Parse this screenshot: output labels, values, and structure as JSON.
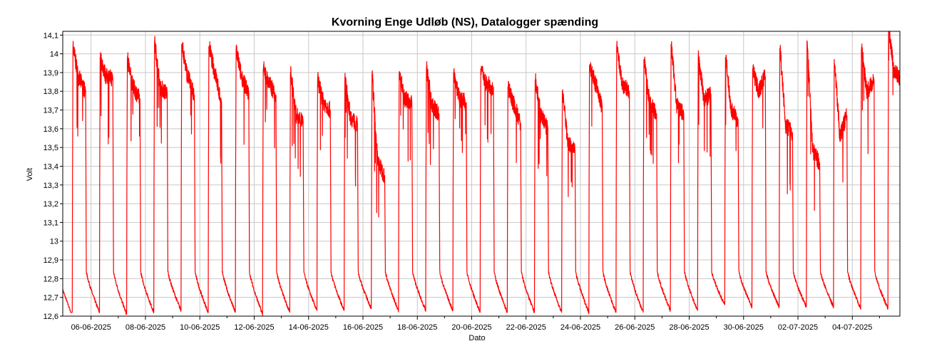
{
  "chart_data": {
    "type": "line",
    "title": "Kvorning Enge Udløb (NS), Datalogger spænding",
    "xlabel": "Dato",
    "ylabel": "Volt",
    "ylim": [
      12.6,
      14.12
    ],
    "xlim": [
      "2025-06-04T23:00",
      "2025-07-05T18:00"
    ],
    "yticks": [
      "12,6",
      "12,7",
      "12,8",
      "12,9",
      "13",
      "13,1",
      "13,2",
      "13,3",
      "13,4",
      "13,5",
      "13,6",
      "13,7",
      "13,8",
      "13,9",
      "14",
      "14,1"
    ],
    "xticks": [
      "06-06-2025",
      "08-06-2025",
      "10-06-2025",
      "12-06-2025",
      "14-06-2025",
      "16-06-2025",
      "18-06-2025",
      "20-06-2025",
      "22-06-2025",
      "24-06-2025",
      "26-06-2025",
      "28-06-2025",
      "30-06-2025",
      "02-07-2025",
      "04-07-2025"
    ],
    "grid": true,
    "series_color": "#ff0000",
    "series": [
      {
        "days": [
          {
            "date": "2025-06-05",
            "min": 12.62,
            "peak": 14.03,
            "plateau": 13.87,
            "end": 13.8
          },
          {
            "date": "2025-06-06",
            "min": 12.62,
            "peak": 13.98,
            "plateau": 13.88,
            "end": 13.87
          },
          {
            "date": "2025-06-07",
            "min": 12.61,
            "peak": 13.97,
            "plateau": 13.82,
            "end": 13.76
          },
          {
            "date": "2025-06-08",
            "min": 12.62,
            "peak": 14.06,
            "plateau": 13.82,
            "end": 13.79
          },
          {
            "date": "2025-06-09",
            "min": 12.63,
            "peak": 14.05,
            "plateau": 13.88,
            "end": 13.78
          },
          {
            "date": "2025-06-10",
            "min": 12.62,
            "peak": 14.04,
            "plateau": 13.9,
            "end": 13.74
          },
          {
            "date": "2025-06-11",
            "min": 12.62,
            "peak": 14.02,
            "plateau": 13.87,
            "end": 13.79
          },
          {
            "date": "2025-06-12",
            "min": 12.61,
            "peak": 13.92,
            "plateau": 13.84,
            "end": 13.78
          },
          {
            "date": "2025-06-13",
            "min": 12.62,
            "peak": 13.9,
            "plateau": 13.67,
            "end": 13.64
          },
          {
            "date": "2025-06-14",
            "min": 12.63,
            "peak": 13.86,
            "plateau": 13.74,
            "end": 13.7
          },
          {
            "date": "2025-06-15",
            "min": 12.63,
            "peak": 13.86,
            "plateau": 13.66,
            "end": 13.62
          },
          {
            "date": "2025-06-16",
            "min": 12.64,
            "peak": 13.88,
            "plateau": 13.42,
            "end": 13.35
          },
          {
            "date": "2025-06-17",
            "min": 12.63,
            "peak": 13.9,
            "plateau": 13.76,
            "end": 13.74
          },
          {
            "date": "2025-06-18",
            "min": 12.63,
            "peak": 13.92,
            "plateau": 13.72,
            "end": 13.68
          },
          {
            "date": "2025-06-19",
            "min": 12.63,
            "peak": 13.9,
            "plateau": 13.76,
            "end": 13.74
          },
          {
            "date": "2025-06-20",
            "min": 12.62,
            "peak": 13.92,
            "plateau": 13.84,
            "end": 13.82
          },
          {
            "date": "2025-06-21",
            "min": 12.62,
            "peak": 13.82,
            "plateau": 13.73,
            "end": 13.63
          },
          {
            "date": "2025-06-22",
            "min": 12.62,
            "peak": 13.86,
            "plateau": 13.67,
            "end": 13.6
          },
          {
            "date": "2025-06-23",
            "min": 12.62,
            "peak": 13.8,
            "plateau": 13.52,
            "end": 13.48
          },
          {
            "date": "2025-06-24",
            "min": 12.62,
            "peak": 13.94,
            "plateau": 13.84,
            "end": 13.72
          },
          {
            "date": "2025-06-25",
            "min": 12.62,
            "peak": 14.03,
            "plateau": 13.83,
            "end": 13.8
          },
          {
            "date": "2025-06-26",
            "min": 12.62,
            "peak": 13.97,
            "plateau": 13.74,
            "end": 13.68
          },
          {
            "date": "2025-06-27",
            "min": 12.63,
            "peak": 14.05,
            "plateau": 13.72,
            "end": 13.68
          },
          {
            "date": "2025-06-28",
            "min": 12.63,
            "peak": 13.99,
            "plateau": 13.76,
            "end": 13.78
          },
          {
            "date": "2025-06-29",
            "min": 12.66,
            "peak": 13.98,
            "plateau": 13.7,
            "end": 13.65
          },
          {
            "date": "2025-06-30",
            "min": 12.65,
            "peak": 13.92,
            "plateau": 13.8,
            "end": 13.88
          },
          {
            "date": "2025-07-01",
            "min": 12.65,
            "peak": 14.03,
            "plateau": 13.62,
            "end": 13.58
          },
          {
            "date": "2025-07-02",
            "min": 12.65,
            "peak": 14.07,
            "plateau": 13.48,
            "end": 13.42
          },
          {
            "date": "2025-07-03",
            "min": 12.65,
            "peak": 13.97,
            "plateau": 13.56,
            "end": 13.67
          },
          {
            "date": "2025-07-04",
            "min": 12.64,
            "peak": 14.02,
            "plateau": 13.8,
            "end": 13.86
          },
          {
            "date": "2025-07-05",
            "min": 12.64,
            "peak": 14.12,
            "plateau": 13.9,
            "end": 13.87
          }
        ]
      }
    ]
  }
}
